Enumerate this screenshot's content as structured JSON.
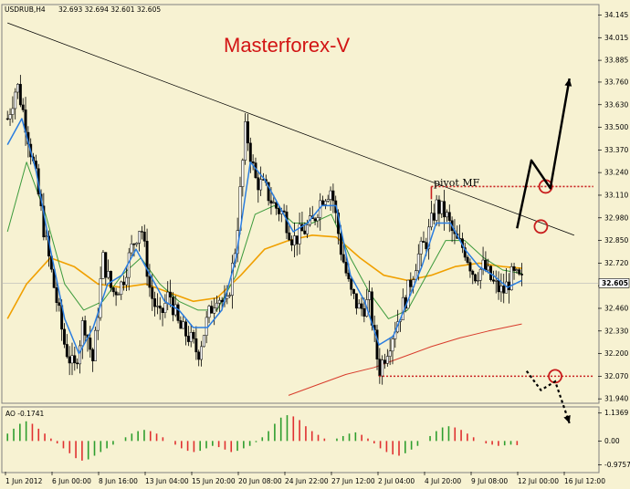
{
  "header": {
    "symbol": "USDRUB,H4",
    "quote": "32.693 32.694 32.601 32.605"
  },
  "watermark": "Masterforex-V",
  "chart_data": {
    "type": "candlestick",
    "symbol": "USDRUB",
    "timeframe": "H4",
    "ohlc": {
      "open": 32.693,
      "high": 32.694,
      "low": 32.601,
      "close": 32.605
    },
    "current_price": 32.605,
    "y_ticks": [
      34.145,
      34.015,
      33.885,
      33.76,
      33.63,
      33.5,
      33.37,
      33.24,
      33.11,
      32.98,
      32.85,
      32.72,
      32.59,
      32.46,
      32.33,
      32.2,
      32.07,
      31.94
    ],
    "y_tick_labels": [
      "34.145",
      "34.015",
      "33.885",
      "33.760",
      "33.630",
      "33.500",
      "33.370",
      "33.240",
      "33.110",
      "32.980",
      "32.850",
      "32.720",
      "32.590",
      "32.460",
      "32.330",
      "32.200",
      "32.070",
      "31.940"
    ],
    "ylim": [
      31.92,
      34.2
    ],
    "x_tick_labels": [
      "1 Jun 2012",
      "6 Jun 00:00",
      "8 Jun 16:00",
      "13 Jun 04:00",
      "15 Jun 20:00",
      "20 Jun 08:00",
      "24 Jun 22:00",
      "27 Jun 12:00",
      "2 Jul 04:00",
      "4 Jul 20:00",
      "9 Jul 08:00",
      "12 Jul 00:00",
      "16 Jul 12:00"
    ],
    "price_path": [
      [
        1,
        33.55
      ],
      [
        3,
        33.75
      ],
      [
        5,
        33.5
      ],
      [
        7,
        33.2
      ],
      [
        9,
        32.85
      ],
      [
        11,
        32.55
      ],
      [
        13,
        32.25
      ],
      [
        15,
        32.1
      ],
      [
        17,
        32.4
      ],
      [
        19,
        32.15
      ],
      [
        21,
        32.75
      ],
      [
        23,
        32.55
      ],
      [
        25,
        32.6
      ],
      [
        27,
        32.8
      ],
      [
        29,
        32.95
      ],
      [
        31,
        32.55
      ],
      [
        33,
        32.4
      ],
      [
        35,
        32.55
      ],
      [
        37,
        32.35
      ],
      [
        39,
        32.3
      ],
      [
        41,
        32.2
      ],
      [
        43,
        32.4
      ],
      [
        45,
        32.55
      ],
      [
        47,
        32.45
      ],
      [
        49,
        32.85
      ],
      [
        51,
        33.5
      ],
      [
        53,
        33.2
      ],
      [
        55,
        33.15
      ],
      [
        57,
        33.05
      ],
      [
        59,
        33.0
      ],
      [
        61,
        32.85
      ],
      [
        63,
        32.9
      ],
      [
        65,
        32.95
      ],
      [
        67,
        33.1
      ],
      [
        69,
        33.15
      ],
      [
        71,
        32.8
      ],
      [
        73,
        32.55
      ],
      [
        75,
        32.45
      ],
      [
        77,
        32.5
      ],
      [
        79,
        32.1
      ],
      [
        81,
        32.25
      ],
      [
        83,
        32.4
      ],
      [
        85,
        32.55
      ],
      [
        87,
        32.75
      ],
      [
        89,
        32.85
      ],
      [
        91,
        33.05
      ],
      [
        93,
        33.0
      ],
      [
        95,
        32.85
      ],
      [
        97,
        32.8
      ],
      [
        99,
        32.65
      ],
      [
        101,
        32.7
      ],
      [
        103,
        32.6
      ],
      [
        105,
        32.55
      ],
      [
        107,
        32.65
      ],
      [
        109,
        32.61
      ]
    ],
    "ma_blue": [
      [
        1,
        33.4
      ],
      [
        4,
        33.55
      ],
      [
        7,
        33.25
      ],
      [
        10,
        32.8
      ],
      [
        13,
        32.4
      ],
      [
        16,
        32.2
      ],
      [
        19,
        32.35
      ],
      [
        22,
        32.6
      ],
      [
        25,
        32.65
      ],
      [
        28,
        32.8
      ],
      [
        31,
        32.65
      ],
      [
        34,
        32.5
      ],
      [
        37,
        32.45
      ],
      [
        40,
        32.35
      ],
      [
        43,
        32.35
      ],
      [
        46,
        32.45
      ],
      [
        49,
        32.75
      ],
      [
        52,
        33.3
      ],
      [
        55,
        33.2
      ],
      [
        58,
        33.05
      ],
      [
        61,
        32.9
      ],
      [
        64,
        32.95
      ],
      [
        67,
        33.05
      ],
      [
        70,
        33.05
      ],
      [
        73,
        32.65
      ],
      [
        76,
        32.5
      ],
      [
        79,
        32.25
      ],
      [
        82,
        32.3
      ],
      [
        85,
        32.5
      ],
      [
        88,
        32.7
      ],
      [
        91,
        32.95
      ],
      [
        94,
        32.95
      ],
      [
        97,
        32.8
      ],
      [
        100,
        32.7
      ],
      [
        103,
        32.65
      ],
      [
        106,
        32.58
      ],
      [
        109,
        32.62
      ]
    ],
    "ma_green": [
      [
        1,
        32.9
      ],
      [
        5,
        33.3
      ],
      [
        9,
        33.0
      ],
      [
        13,
        32.6
      ],
      [
        17,
        32.45
      ],
      [
        21,
        32.5
      ],
      [
        25,
        32.65
      ],
      [
        29,
        32.75
      ],
      [
        33,
        32.6
      ],
      [
        37,
        32.5
      ],
      [
        41,
        32.45
      ],
      [
        45,
        32.45
      ],
      [
        49,
        32.65
      ],
      [
        53,
        33.0
      ],
      [
        57,
        33.05
      ],
      [
        61,
        32.95
      ],
      [
        65,
        32.95
      ],
      [
        69,
        33.0
      ],
      [
        73,
        32.75
      ],
      [
        77,
        32.55
      ],
      [
        81,
        32.4
      ],
      [
        85,
        32.45
      ],
      [
        89,
        32.65
      ],
      [
        93,
        32.85
      ],
      [
        97,
        32.85
      ],
      [
        101,
        32.75
      ],
      [
        105,
        32.68
      ],
      [
        109,
        32.66
      ]
    ],
    "ma_orange": [
      [
        1,
        32.4
      ],
      [
        5,
        32.6
      ],
      [
        10,
        32.75
      ],
      [
        15,
        32.7
      ],
      [
        20,
        32.6
      ],
      [
        25,
        32.58
      ],
      [
        30,
        32.6
      ],
      [
        35,
        32.55
      ],
      [
        40,
        32.5
      ],
      [
        45,
        32.52
      ],
      [
        50,
        32.65
      ],
      [
        55,
        32.8
      ],
      [
        60,
        32.85
      ],
      [
        65,
        32.88
      ],
      [
        70,
        32.87
      ],
      [
        75,
        32.75
      ],
      [
        80,
        32.65
      ],
      [
        85,
        32.62
      ],
      [
        90,
        32.65
      ],
      [
        95,
        32.7
      ],
      [
        100,
        32.72
      ],
      [
        105,
        32.7
      ],
      [
        109,
        32.69
      ]
    ],
    "ma_red": [
      [
        60,
        31.96
      ],
      [
        66,
        32.02
      ],
      [
        72,
        32.08
      ],
      [
        78,
        32.12
      ],
      [
        84,
        32.18
      ],
      [
        90,
        32.24
      ],
      [
        96,
        32.29
      ],
      [
        102,
        32.33
      ],
      [
        109,
        32.37
      ]
    ],
    "trendline": {
      "from": [
        1,
        34.1
      ],
      "to": [
        120,
        32.88
      ]
    },
    "pivot_label": "pivot MF",
    "pivot_level": 33.16,
    "low_level": 32.07,
    "forecast_up": [
      [
        108,
        32.92
      ],
      [
        111,
        33.31
      ],
      [
        115,
        33.15
      ],
      [
        119,
        33.78
      ]
    ],
    "forecast_down": [
      [
        110,
        32.1
      ],
      [
        113,
        31.99
      ],
      [
        116,
        32.04
      ],
      [
        119,
        31.8
      ]
    ],
    "x_domain": [
      0,
      125
    ],
    "indicator": {
      "name": "AO",
      "label": "AO -0.1741",
      "value": -0.1741,
      "y_ticks": [
        1.1369,
        0.0,
        -0.9757
      ],
      "y_tick_labels": [
        "1.1369",
        "0.00",
        "-0.9757"
      ],
      "ylim": [
        -1.25,
        1.35
      ],
      "values": [
        0.3,
        0.5,
        0.7,
        0.8,
        0.7,
        0.5,
        0.3,
        0.1,
        -0.1,
        -0.3,
        -0.5,
        -0.7,
        -0.8,
        -0.75,
        -0.6,
        -0.45,
        -0.3,
        -0.15,
        0.0,
        0.15,
        0.3,
        0.4,
        0.45,
        0.4,
        0.3,
        0.15,
        0.0,
        -0.15,
        -0.3,
        -0.4,
        -0.45,
        -0.4,
        -0.3,
        -0.2,
        -0.25,
        -0.35,
        -0.45,
        -0.4,
        -0.3,
        -0.2,
        -0.05,
        0.15,
        0.4,
        0.7,
        0.95,
        1.05,
        1.0,
        0.85,
        0.6,
        0.4,
        0.25,
        0.1,
        0.0,
        0.1,
        0.2,
        0.3,
        0.35,
        0.25,
        0.1,
        -0.1,
        -0.3,
        -0.45,
        -0.55,
        -0.6,
        -0.5,
        -0.35,
        -0.2,
        0.0,
        0.2,
        0.4,
        0.55,
        0.6,
        0.55,
        0.45,
        0.3,
        0.15,
        0.0,
        -0.1,
        -0.15,
        -0.2,
        -0.18,
        -0.15,
        -0.17
      ]
    }
  }
}
